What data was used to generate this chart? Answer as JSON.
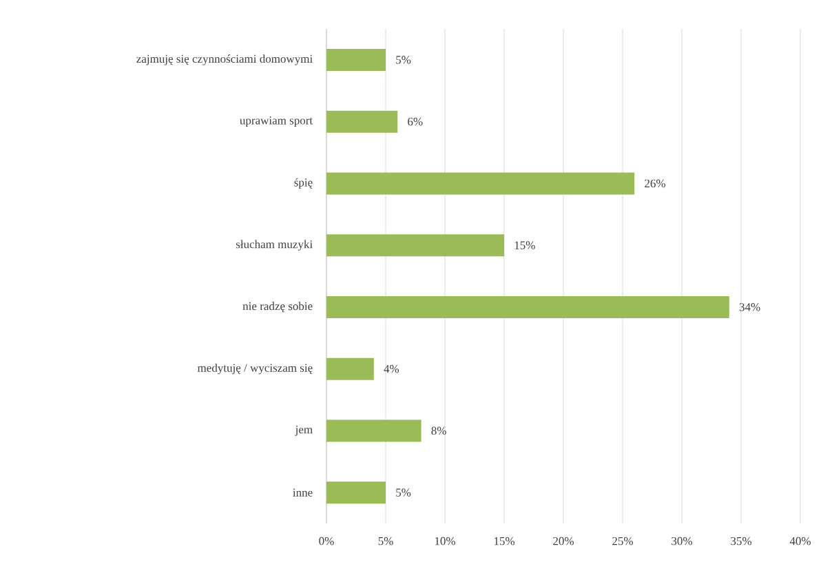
{
  "chart_data": {
    "type": "bar",
    "orientation": "horizontal",
    "categories": [
      "zajmuję się czynnościami domowymi",
      "uprawiam sport",
      "śpię",
      "słucham muzyki",
      "nie radzę sobie",
      "medytuję / wyciszam się",
      "jem",
      "inne"
    ],
    "values": [
      5,
      6,
      26,
      15,
      34,
      4,
      8,
      5
    ],
    "value_labels": [
      "5%",
      "6%",
      "26%",
      "15%",
      "34%",
      "4%",
      "8%",
      "5%"
    ],
    "color": "#9bbb59",
    "xlim": [
      0,
      40
    ],
    "xticks": [
      {
        "value": 0,
        "label": "0%"
      },
      {
        "value": 5,
        "label": "5%"
      },
      {
        "value": 10,
        "label": "10%"
      },
      {
        "value": 15,
        "label": "15%"
      },
      {
        "value": 20,
        "label": "20%"
      },
      {
        "value": 25,
        "label": "25%"
      },
      {
        "value": 30,
        "label": "30%"
      },
      {
        "value": 35,
        "label": "35%"
      },
      {
        "value": 40,
        "label": "40%"
      }
    ],
    "grid": "x"
  }
}
